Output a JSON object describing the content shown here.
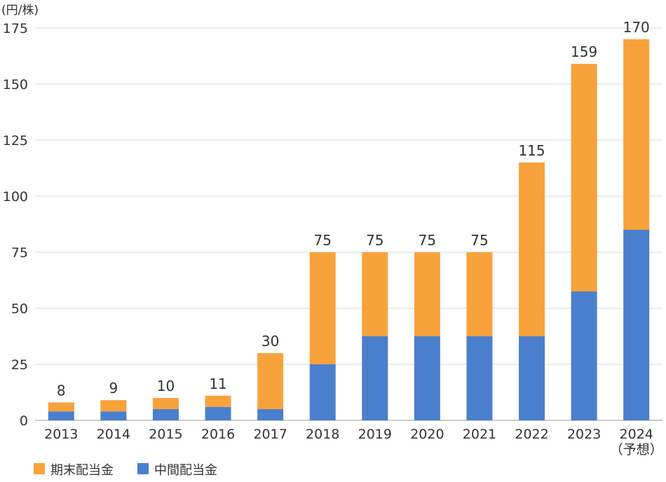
{
  "chart_data": {
    "type": "bar",
    "stacked": true,
    "y_unit_label": "(円/株)",
    "categories": [
      "2013",
      "2014",
      "2015",
      "2016",
      "2017",
      "2018",
      "2019",
      "2020",
      "2021",
      "2022",
      "2023",
      "2024"
    ],
    "category_sublabels": [
      "",
      "",
      "",
      "",
      "",
      "",
      "",
      "",
      "",
      "",
      "",
      "（予想）"
    ],
    "series": [
      {
        "name": "中間配当金",
        "color": "#4a7fcd",
        "values": [
          4,
          4,
          5,
          6,
          5,
          25,
          37.5,
          37.5,
          37.5,
          37.5,
          57.5,
          85
        ]
      },
      {
        "name": "期末配当金",
        "color": "#f8a23c",
        "values": [
          4,
          5,
          5,
          5,
          25,
          50,
          37.5,
          37.5,
          37.5,
          77.5,
          101.5,
          85
        ]
      }
    ],
    "totals": [
      "8",
      "9",
      "10",
      "11",
      "30",
      "75",
      "75",
      "75",
      "75",
      "115",
      "159",
      "170"
    ],
    "ylim": [
      0,
      175
    ],
    "yticks": [
      0,
      25,
      50,
      75,
      100,
      125,
      150,
      175
    ],
    "grid": true,
    "legend": {
      "placement": "bottom-left",
      "items": [
        {
          "label": "期末配当金",
          "color": "#f8a23c"
        },
        {
          "label": "中間配当金",
          "color": "#4a7fcd"
        }
      ]
    }
  }
}
